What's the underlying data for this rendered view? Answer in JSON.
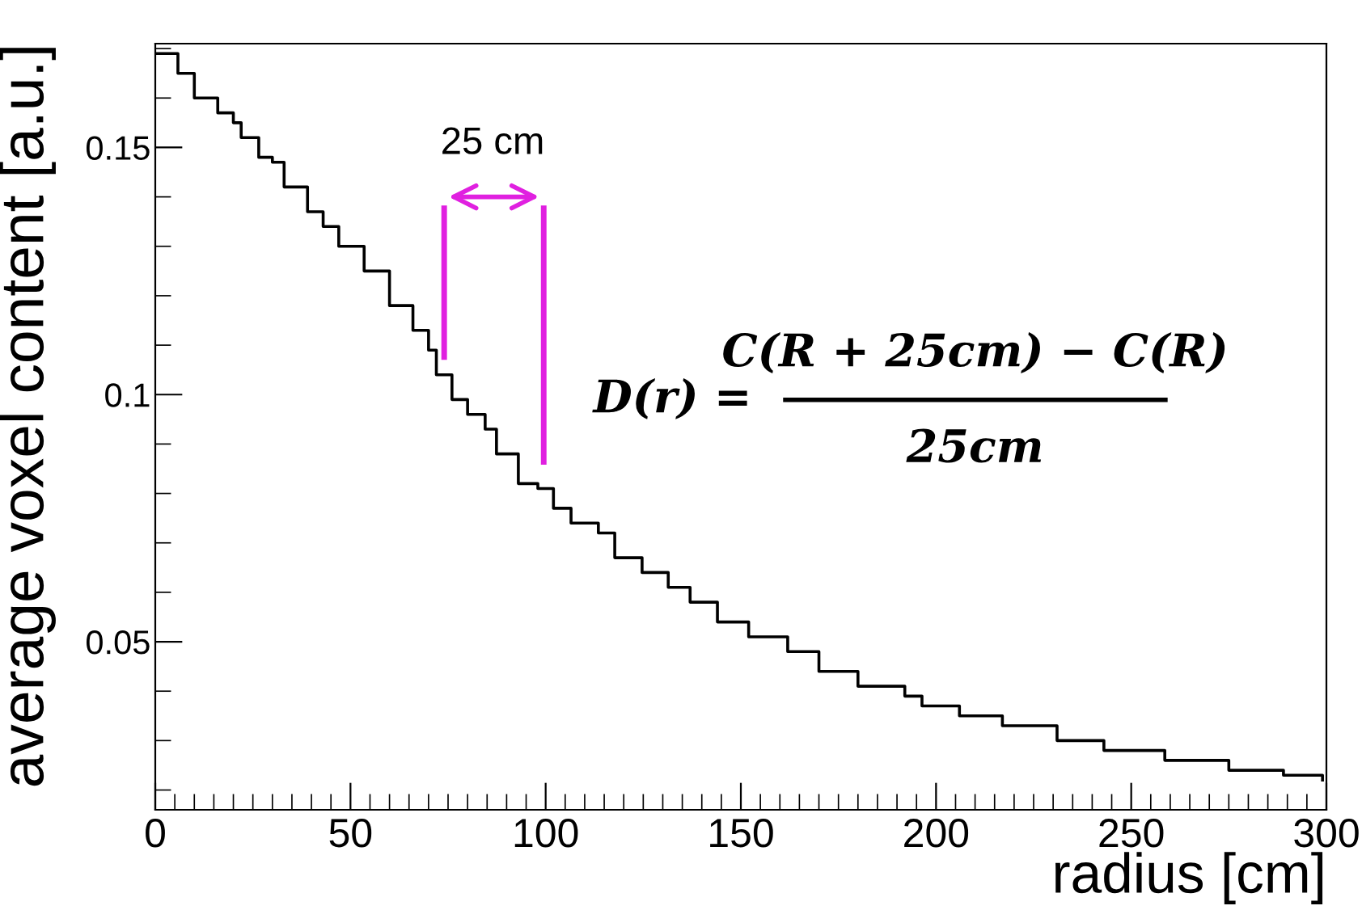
{
  "chart_data": {
    "type": "step",
    "xlabel": "radius [cm]",
    "ylabel": "average voxel content [a.u.]",
    "x": [
      0,
      5.8,
      10,
      16,
      20,
      22,
      26.5,
      30,
      33,
      39,
      43,
      47,
      53.5,
      60,
      66,
      70,
      72,
      76,
      80,
      84.5,
      87.4,
      93,
      98,
      102,
      106.5,
      113.5,
      117.7,
      124.7,
      131.4,
      137,
      144,
      152,
      162,
      170,
      180,
      192,
      196.4,
      206,
      217,
      231,
      243,
      258.6,
      275,
      289,
      299
    ],
    "values": [
      0.169,
      0.165,
      0.16,
      0.157,
      0.155,
      0.152,
      0.148,
      0.147,
      0.142,
      0.137,
      0.134,
      0.13,
      0.125,
      0.118,
      0.113,
      0.109,
      0.104,
      0.099,
      0.096,
      0.093,
      0.088,
      0.082,
      0.081,
      0.077,
      0.074,
      0.072,
      0.067,
      0.064,
      0.061,
      0.058,
      0.054,
      0.051,
      0.048,
      0.044,
      0.041,
      0.039,
      0.037,
      0.035,
      0.033,
      0.03,
      0.028,
      0.026,
      0.024,
      0.023,
      0.022
    ],
    "color": "#000000",
    "xlim": [
      0,
      300
    ],
    "xticks": [
      0,
      50,
      100,
      150,
      200,
      250,
      300
    ],
    "ylim": [
      0.016,
      0.171
    ],
    "yticks": [
      0.05,
      0.1,
      0.15
    ],
    "grid": false,
    "annotations": [
      "25 cm",
      "D(r) =",
      "C(R + 25cm) − C(R)",
      "25cm"
    ]
  }
}
